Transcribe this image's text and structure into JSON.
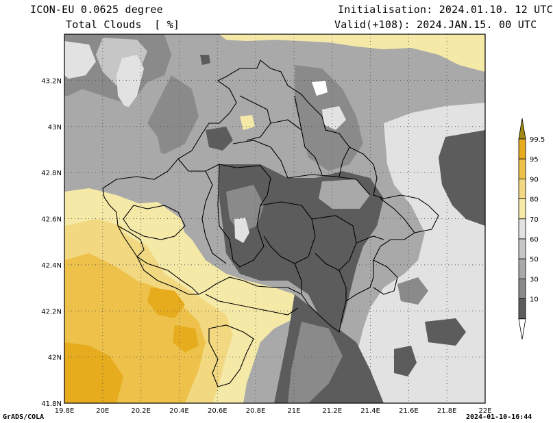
{
  "header": {
    "model": "ICON-EU 0.0625 degree",
    "field": "Total Clouds  [ %]",
    "init": "Initialisation: 2024.01.10. 12 UTC",
    "valid": "Valid(+108): 2024.JAN.15. 00 UTC"
  },
  "footer": {
    "credit": "GrADS/COLA",
    "timestamp": "2024-01-10-16:44"
  },
  "map": {
    "lat_labels": [
      "43.2N",
      "43N",
      "42.8N",
      "42.6N",
      "42.4N",
      "42.2N",
      "42N",
      "41.8N"
    ],
    "lon_labels": [
      "19.8E",
      "20E",
      "20.2E",
      "20.4E",
      "20.6E",
      "20.8E",
      "21E",
      "21.2E",
      "21.4E",
      "21.6E",
      "21.8E",
      "22E"
    ],
    "lat_range": [
      41.8,
      43.4
    ],
    "lon_range": [
      19.8,
      22.0
    ]
  },
  "colorbar": {
    "levels": [
      "99.5",
      "95",
      "90",
      "80",
      "70",
      "60",
      "50",
      "30",
      "10"
    ],
    "colors": [
      "#e6ac1e",
      "#eec24a",
      "#f2d880",
      "#f5e9a8",
      "#e2e2e2",
      "#c6c6c6",
      "#a9a9a9",
      "#8a8a8a",
      "#5c5c5c"
    ],
    "over_color": "#a08a14"
  }
}
